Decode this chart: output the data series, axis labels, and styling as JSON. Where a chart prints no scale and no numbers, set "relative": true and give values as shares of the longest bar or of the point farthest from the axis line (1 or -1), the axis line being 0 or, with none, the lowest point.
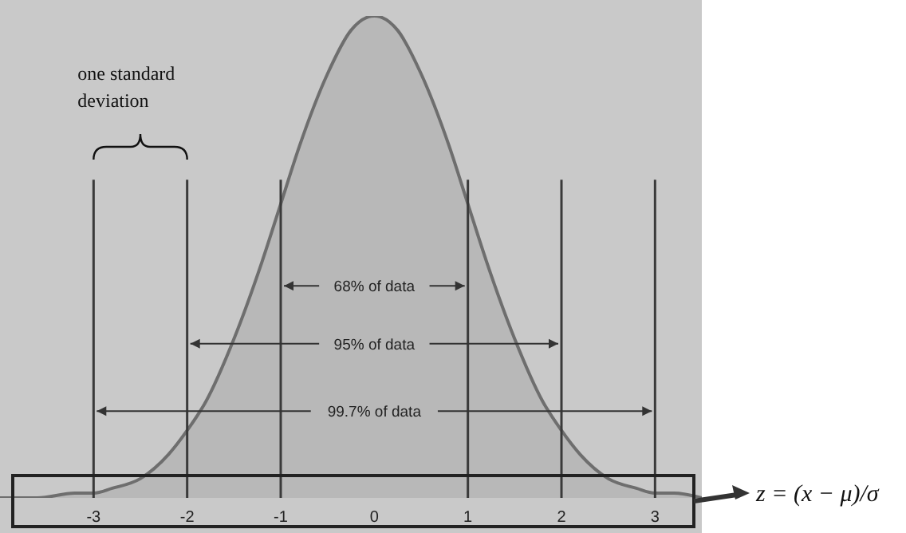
{
  "chart_data": {
    "type": "area",
    "relative": true,
    "x": [
      -4,
      -3.6,
      -3.2,
      -3,
      -2.8,
      -2.5,
      -2.2,
      -2,
      -1.8,
      -1.5,
      -1.2,
      -1,
      -0.8,
      -0.5,
      -0.25,
      0,
      0.25,
      0.5,
      0.8,
      1,
      1.2,
      1.5,
      1.8,
      2,
      2.2,
      2.5,
      2.8,
      3,
      3.2,
      3.5
    ],
    "series": [
      {
        "color": "#6e6e6e",
        "values": [
          0,
          0,
          0.01,
          0.01,
          0.02,
          0.04,
          0.09,
          0.14,
          0.2,
          0.33,
          0.49,
          0.61,
          0.73,
          0.88,
          0.97,
          1,
          0.97,
          0.88,
          0.73,
          0.61,
          0.49,
          0.33,
          0.2,
          0.14,
          0.09,
          0.04,
          0.02,
          0.01,
          0.01,
          0
        ]
      }
    ],
    "xlim": [
      -4,
      3.5
    ],
    "xticks": [
      -3,
      -2,
      -1,
      0,
      1,
      2,
      3
    ],
    "ref_lines": [
      {
        "axis": "x",
        "value": -3,
        "color": "#3a3a3a"
      },
      {
        "axis": "x",
        "value": -2,
        "color": "#3a3a3a"
      },
      {
        "axis": "x",
        "value": -1,
        "color": "#3a3a3a"
      },
      {
        "axis": "x",
        "value": 1,
        "color": "#3a3a3a"
      },
      {
        "axis": "x",
        "value": 2,
        "color": "#3a3a3a"
      },
      {
        "axis": "x",
        "value": 3,
        "color": "#3a3a3a"
      }
    ],
    "annotations": [
      "68% of data",
      "95% of data",
      "99.7% of data",
      "one standard deviation",
      "z = (x − μ)/σ"
    ],
    "grid": false,
    "legend": false
  }
}
